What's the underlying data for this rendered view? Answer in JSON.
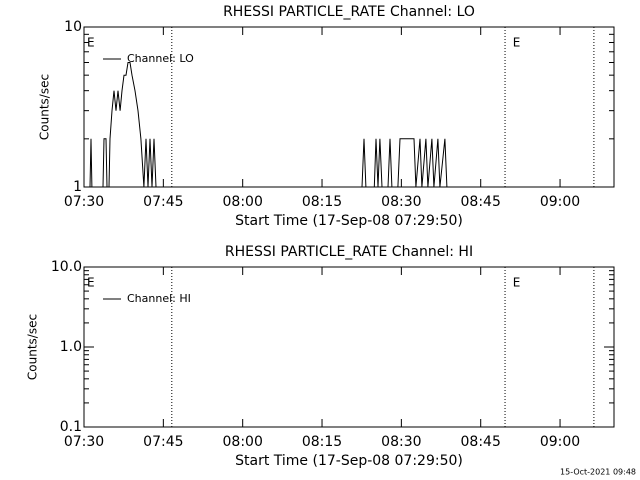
{
  "chart_data": [
    {
      "type": "line",
      "title": "RHESSI PARTICLE_RATE Channel: LO",
      "xlabel": "Start Time (17-Sep-08 07:29:50)",
      "ylabel": "Counts/sec",
      "x": [
        "07:30:00",
        "07:31:08",
        "07:31:19",
        "07:31:30",
        "07:33:35",
        "07:33:47",
        "07:34:09",
        "07:34:21",
        "07:34:44",
        "07:34:55",
        "07:35:18",
        "07:35:40",
        "07:36:03",
        "07:36:26",
        "07:36:50",
        "07:37:11",
        "07:37:34",
        "07:37:56",
        "07:38:19",
        "07:38:42",
        "07:39:04",
        "07:39:38",
        "07:40:12",
        "07:40:46",
        "07:41:20",
        "07:41:43",
        "07:42:06",
        "07:42:29",
        "07:42:51",
        "07:43:14",
        "07:43:37",
        "08:22:33",
        "08:22:56",
        "08:23:18",
        "08:24:53",
        "08:25:12",
        "08:25:35",
        "08:25:57",
        "08:26:20",
        "08:27:28",
        "08:27:51",
        "08:28:13",
        "08:29:21",
        "08:29:44",
        "08:32:23",
        "08:32:45",
        "08:33:31",
        "08:33:53",
        "08:34:38",
        "08:35:01",
        "08:35:46",
        "08:36:09",
        "08:36:54",
        "08:37:17",
        "08:38:14",
        "08:38:36"
      ],
      "series": [
        {
          "name": "Channel: LO",
          "color": "#000000",
          "values": [
            1,
            1,
            2,
            1,
            1,
            2,
            2,
            1,
            1,
            2,
            3,
            4,
            3,
            4,
            3,
            4,
            5,
            5,
            6,
            6,
            5,
            4,
            3,
            2,
            1,
            2,
            1,
            2,
            1,
            2,
            1,
            1,
            2,
            1,
            1,
            2,
            1,
            2,
            1,
            1,
            2,
            1,
            1,
            2,
            2,
            1,
            2,
            1,
            2,
            1,
            2,
            1,
            2,
            1,
            2,
            1
          ]
        }
      ],
      "xlim": [
        "07:30:00",
        "09:10:12"
      ],
      "xticks": [
        "07:30",
        "07:45",
        "08:00",
        "08:15",
        "08:30",
        "08:45",
        "09:00"
      ],
      "ylim": [
        1,
        10
      ],
      "yticks": [
        1,
        10
      ],
      "minor_yticks": [
        2,
        3,
        4,
        5,
        6,
        7,
        8,
        9
      ],
      "log_scale": true,
      "vlines": [
        "07:46:36",
        "08:49:36",
        "09:06:24"
      ],
      "annotations": [
        {
          "text": "E",
          "x": "07:30:00"
        },
        {
          "text": "E",
          "x": "08:50:30"
        }
      ]
    },
    {
      "type": "line",
      "title": "RHESSI PARTICLE_RATE Channel: HI",
      "xlabel": "Start Time (17-Sep-08 07:29:50)",
      "ylabel": "Counts/sec",
      "x": [],
      "series": [
        {
          "name": "Channel: HI",
          "color": "#000000",
          "values": []
        }
      ],
      "xlim": [
        "07:30:00",
        "09:10:12"
      ],
      "xticks": [
        "07:30",
        "07:45",
        "08:00",
        "08:15",
        "08:30",
        "08:45",
        "09:00"
      ],
      "ylim": [
        0.1,
        10
      ],
      "yticks": [
        0.1,
        {
          "value": 1,
          "label": "1.0"
        },
        {
          "value": 10,
          "label": "10.0"
        }
      ],
      "minor_yticks": [
        0.2,
        0.3,
        0.4,
        0.5,
        0.6,
        0.7,
        0.8,
        0.9,
        2,
        3,
        4,
        5,
        6,
        7,
        8,
        9
      ],
      "log_scale": true,
      "vlines": [
        "07:46:36",
        "08:49:36",
        "09:06:24"
      ],
      "annotations": [
        {
          "text": "E",
          "x": "07:30:00"
        },
        {
          "text": "E",
          "x": "08:50:30"
        }
      ]
    }
  ],
  "footer": "15-Oct-2021 09:48"
}
